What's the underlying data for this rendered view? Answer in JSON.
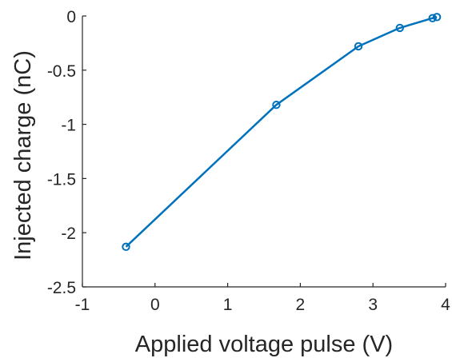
{
  "chart_data": {
    "type": "line",
    "title": "",
    "xlabel": "Applied voltage pulse (V)",
    "ylabel": "Injected charge (nC)",
    "xlim": [
      -1,
      4
    ],
    "ylim": [
      -2.5,
      0
    ],
    "xticks": [
      -1,
      0,
      1,
      2,
      3,
      4
    ],
    "xtick_labels": [
      "-1",
      "0",
      "1",
      "2",
      "3",
      "4"
    ],
    "yticks": [
      -2.5,
      -2,
      -1.5,
      -1,
      -0.5,
      0
    ],
    "ytick_labels": [
      "-2.5",
      "-2",
      "-1.5",
      "-1",
      "-0.5",
      "0"
    ],
    "grid": false,
    "series": [
      {
        "color": "#0072BD",
        "marker": "circle",
        "x": [
          -0.4,
          1.67,
          2.8,
          3.37,
          3.82,
          3.88
        ],
        "y": [
          -2.13,
          -0.82,
          -0.28,
          -0.11,
          -0.02,
          -0.01
        ]
      }
    ]
  }
}
